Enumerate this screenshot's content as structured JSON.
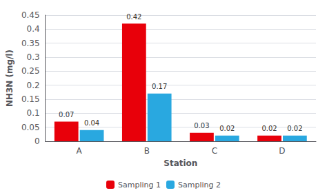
{
  "chart_data": {
    "type": "bar",
    "categories": [
      "A",
      "B",
      "C",
      "D"
    ],
    "series": [
      {
        "name": "Sampling 1",
        "color": "#E8000A",
        "values": [
          0.07,
          0.42,
          0.03,
          0.02
        ]
      },
      {
        "name": "Sampling 2",
        "color": "#29A8E0",
        "values": [
          0.04,
          0.17,
          0.02,
          0.02
        ]
      }
    ],
    "xlabel": "Station",
    "ylabel": "NH3N (mg/l)",
    "ylim": [
      0,
      0.45
    ],
    "yticks": [
      0,
      0.05,
      0.1,
      0.15,
      0.2,
      0.25,
      0.3,
      0.35,
      0.4,
      0.45
    ],
    "grid": true,
    "legend": "bottom",
    "data_labels": true
  }
}
